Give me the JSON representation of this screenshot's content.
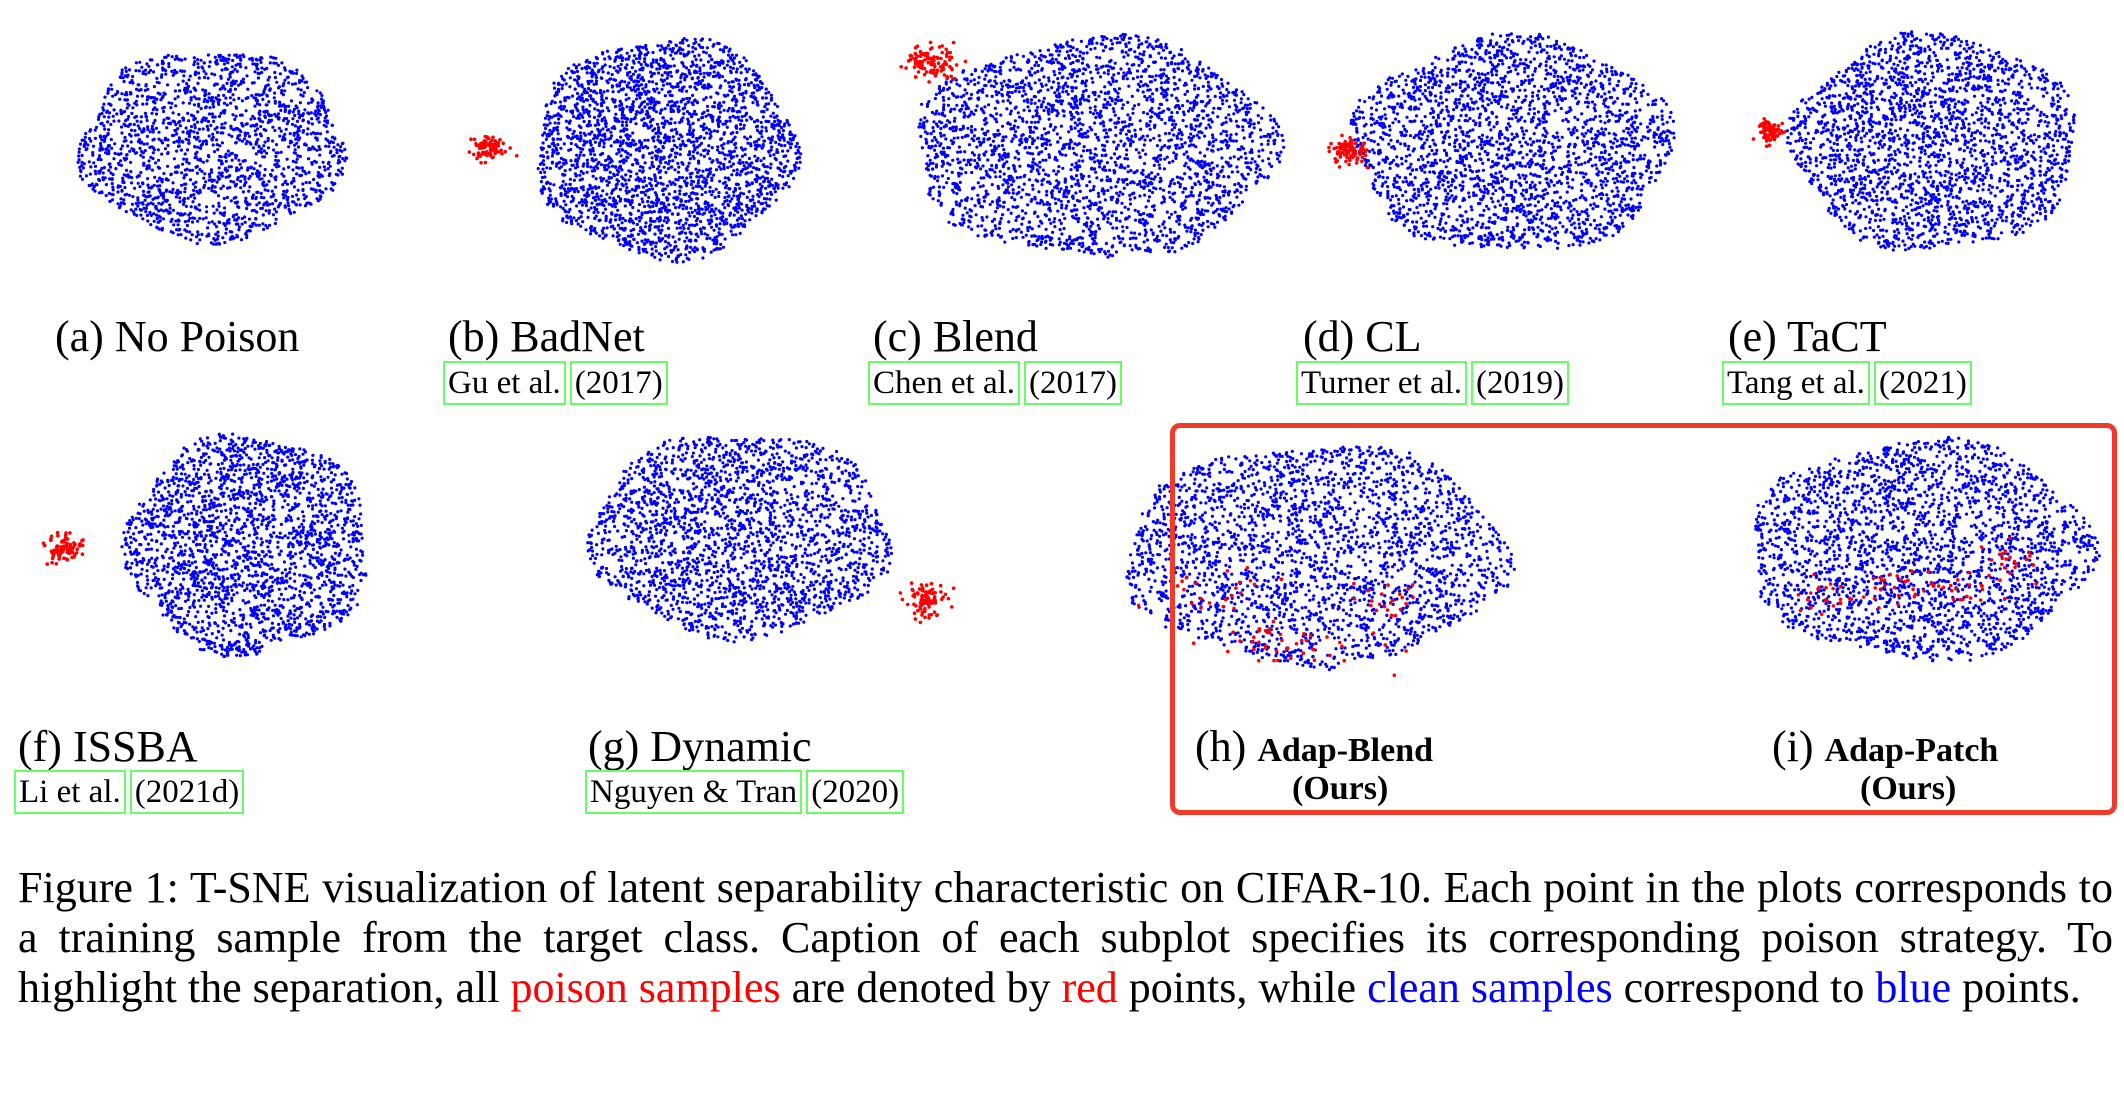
{
  "colors": {
    "clean": "#0000ff",
    "poison": "#ff0000",
    "ours_box": "#f03a2a",
    "cite_box": "#66ff66"
  },
  "subplots": [
    {
      "label": "(a) No Poison",
      "cite_text": "",
      "cite_year": "",
      "clean_points": 1800,
      "poison": "none"
    },
    {
      "label": "(b) BadNet",
      "cite_text": "Gu et al.",
      "cite_year": "(2017)",
      "clean_points": 2600,
      "poison": "separate-cluster"
    },
    {
      "label": "(c) Blend",
      "cite_text": "Chen et al.",
      "cite_year": "(2017)",
      "clean_points": 2600,
      "poison": "separate-cluster"
    },
    {
      "label": "(d) CL",
      "cite_text": "Turner et al.",
      "cite_year": "(2019)",
      "clean_points": 2400,
      "poison": "separate-cluster"
    },
    {
      "label": "(e) TaCT",
      "cite_text": "Tang et al.",
      "cite_year": "(2021)",
      "clean_points": 2300,
      "poison": "separate-cluster"
    },
    {
      "label": "(f) ISSBA",
      "cite_text": "Li et al.",
      "cite_year": "(2021d)",
      "clean_points": 2200,
      "poison": "separate-cluster"
    },
    {
      "label": "(g) Dynamic",
      "cite_text": "Nguyen & Tran",
      "cite_year": "(2020)",
      "clean_points": 2200,
      "poison": "separate-cluster"
    },
    {
      "label": "(h)",
      "method": "Adap-Blend",
      "ours": "(Ours)",
      "clean_points": 2400,
      "poison": "mixed"
    },
    {
      "label": "(i)",
      "method": "Adap-Patch",
      "ours": "(Ours)",
      "clean_points": 2400,
      "poison": "mixed"
    }
  ],
  "caption": {
    "part1": "Figure 1: T-SNE visualization of latent separability characteristic on CIFAR-10. Each point in the plots corresponds to a training sample from the target class. Caption of each subplot specifies its corresponding poison strategy. To highlight the separation, all ",
    "poison_samples": "poison samples",
    "part2": " are denoted by ",
    "red": "red",
    "part3": " points, while ",
    "clean_samples": "clean samples",
    "part4": " correspond to ",
    "blue": "blue",
    "part5": " points."
  }
}
